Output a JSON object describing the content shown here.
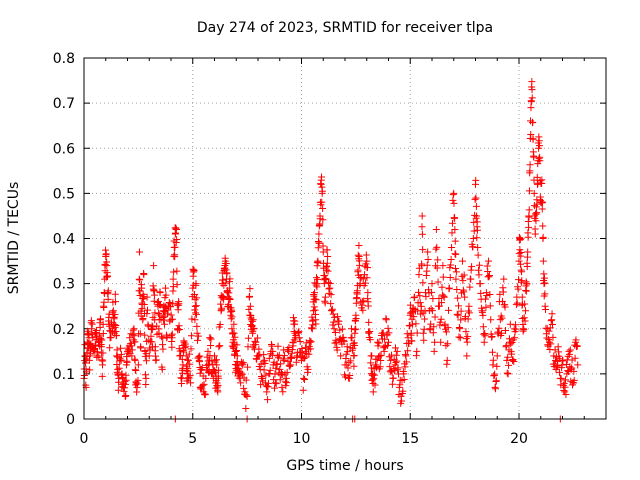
{
  "chart_data": {
    "type": "scatter",
    "title": "Day 274 of 2023, SRMTID for receiver tlpa",
    "xlabel": "GPS time / hours",
    "ylabel": "SRMTID / TECUs",
    "xlim": [
      0,
      24
    ],
    "ylim": [
      0,
      0.8
    ],
    "xticks": [
      0,
      5,
      10,
      15,
      20
    ],
    "yticks": [
      0,
      0.1,
      0.2,
      0.3,
      0.4,
      0.5,
      0.6,
      0.7,
      0.8
    ],
    "grid": true,
    "marker": "+",
    "series": [
      {
        "name": "SRMTID",
        "color": "#ff0000",
        "points": [
          [
            0.0,
            0.09
          ],
          [
            0.05,
            0.14
          ],
          [
            0.1,
            0.07
          ],
          [
            0.15,
            0.17
          ],
          [
            0.2,
            0.19
          ],
          [
            0.25,
            0.13
          ],
          [
            0.3,
            0.16
          ],
          [
            0.35,
            0.2
          ],
          [
            0.4,
            0.18
          ],
          [
            0.5,
            0.15
          ],
          [
            0.55,
            0.19
          ],
          [
            0.6,
            0.14
          ],
          [
            0.7,
            0.17
          ],
          [
            0.75,
            0.22
          ],
          [
            0.8,
            0.16
          ],
          [
            0.85,
            0.12
          ],
          [
            0.9,
            0.25
          ],
          [
            0.95,
            0.31
          ],
          [
            1.0,
            0.36
          ],
          [
            1.05,
            0.34
          ],
          [
            1.1,
            0.28
          ],
          [
            1.15,
            0.21
          ],
          [
            1.2,
            0.18
          ],
          [
            1.3,
            0.2
          ],
          [
            1.35,
            0.24
          ],
          [
            1.4,
            0.19
          ],
          [
            1.45,
            0.26
          ],
          [
            1.5,
            0.14
          ],
          [
            1.55,
            0.11
          ],
          [
            1.6,
            0.09
          ],
          [
            1.7,
            0.13
          ],
          [
            1.75,
            0.1
          ],
          [
            1.8,
            0.07
          ],
          [
            1.9,
            0.05
          ],
          [
            1.95,
            0.12
          ],
          [
            2.0,
            0.15
          ],
          [
            2.1,
            0.18
          ],
          [
            2.2,
            0.14
          ],
          [
            2.3,
            0.2
          ],
          [
            2.35,
            0.13
          ],
          [
            2.4,
            0.08
          ],
          [
            2.5,
            0.12
          ],
          [
            2.55,
            0.37
          ],
          [
            2.6,
            0.16
          ],
          [
            2.65,
            0.29
          ],
          [
            2.7,
            0.22
          ],
          [
            2.75,
            0.32
          ],
          [
            2.8,
            0.15
          ],
          [
            2.85,
            0.09
          ],
          [
            2.9,
            0.27
          ],
          [
            3.0,
            0.14
          ],
          [
            3.1,
            0.2
          ],
          [
            3.15,
            0.16
          ],
          [
            3.2,
            0.34
          ],
          [
            3.25,
            0.22
          ],
          [
            3.3,
            0.13
          ],
          [
            3.4,
            0.25
          ],
          [
            3.45,
            0.19
          ],
          [
            3.5,
            0.28
          ],
          [
            3.6,
            0.11
          ],
          [
            3.65,
            0.24
          ],
          [
            3.7,
            0.21
          ],
          [
            3.75,
            0.29
          ],
          [
            3.8,
            0.18
          ],
          [
            3.9,
            0.25
          ],
          [
            4.0,
            0.22
          ],
          [
            4.05,
            0.18
          ],
          [
            4.1,
            0.31
          ],
          [
            4.15,
            0.38
          ],
          [
            4.2,
            0.41
          ],
          [
            4.25,
            0.42
          ],
          [
            4.3,
            0.2
          ],
          [
            4.35,
            0.26
          ],
          [
            4.4,
            0.14
          ],
          [
            4.5,
            0.09
          ],
          [
            4.55,
            0.12
          ],
          [
            4.6,
            0.17
          ],
          [
            4.7,
            0.14
          ],
          [
            4.75,
            0.1
          ],
          [
            4.8,
            0.13
          ],
          [
            4.9,
            0.08
          ],
          [
            5.0,
            0.29
          ],
          [
            5.05,
            0.33
          ],
          [
            5.1,
            0.22
          ],
          [
            5.15,
            0.3
          ],
          [
            5.2,
            0.19
          ],
          [
            5.3,
            0.13
          ],
          [
            5.35,
            0.07
          ],
          [
            5.4,
            0.11
          ],
          [
            5.5,
            0.06
          ],
          [
            5.6,
            0.09
          ],
          [
            5.7,
            0.15
          ],
          [
            5.75,
            0.12
          ],
          [
            5.8,
            0.18
          ],
          [
            5.9,
            0.1
          ],
          [
            6.0,
            0.14
          ],
          [
            6.05,
            0.08
          ],
          [
            6.1,
            0.12
          ],
          [
            6.15,
            0.06
          ],
          [
            6.2,
            0.16
          ],
          [
            6.3,
            0.24
          ],
          [
            6.35,
            0.3
          ],
          [
            6.4,
            0.27
          ],
          [
            6.45,
            0.33
          ],
          [
            6.5,
            0.35
          ],
          [
            6.55,
            0.31
          ],
          [
            6.6,
            0.28
          ],
          [
            6.65,
            0.25
          ],
          [
            6.7,
            0.29
          ],
          [
            6.75,
            0.23
          ],
          [
            6.8,
            0.2
          ],
          [
            6.85,
            0.17
          ],
          [
            6.9,
            0.19
          ],
          [
            6.95,
            0.15
          ],
          [
            7.0,
            0.12
          ],
          [
            7.05,
            0.14
          ],
          [
            7.1,
            0.1
          ],
          [
            7.2,
            0.08
          ],
          [
            7.3,
            0.12
          ],
          [
            7.4,
            0.06
          ],
          [
            7.5,
            0.05
          ],
          [
            7.6,
            0.27
          ],
          [
            7.65,
            0.25
          ],
          [
            7.7,
            0.22
          ],
          [
            7.75,
            0.19
          ],
          [
            7.8,
            0.2
          ],
          [
            7.9,
            0.17
          ],
          [
            8.0,
            0.14
          ],
          [
            8.1,
            0.11
          ],
          [
            8.2,
            0.09
          ],
          [
            8.3,
            0.13
          ],
          [
            8.4,
            0.06
          ],
          [
            8.5,
            0.1
          ],
          [
            8.6,
            0.15
          ],
          [
            8.7,
            0.12
          ],
          [
            8.8,
            0.08
          ],
          [
            8.9,
            0.14
          ],
          [
            9.0,
            0.11
          ],
          [
            9.1,
            0.07
          ],
          [
            9.2,
            0.13
          ],
          [
            9.3,
            0.09
          ],
          [
            9.4,
            0.15
          ],
          [
            9.5,
            0.12
          ],
          [
            9.6,
            0.17
          ],
          [
            9.65,
            0.21
          ],
          [
            9.7,
            0.19
          ],
          [
            9.8,
            0.14
          ],
          [
            9.9,
            0.18
          ],
          [
            10.0,
            0.13
          ],
          [
            10.1,
            0.09
          ],
          [
            10.2,
            0.15
          ],
          [
            10.3,
            0.11
          ],
          [
            10.4,
            0.17
          ],
          [
            10.5,
            0.2
          ],
          [
            10.55,
            0.24
          ],
          [
            10.6,
            0.28
          ],
          [
            10.65,
            0.22
          ],
          [
            10.7,
            0.3
          ],
          [
            10.75,
            0.35
          ],
          [
            10.8,
            0.41
          ],
          [
            10.85,
            0.45
          ],
          [
            10.9,
            0.52
          ],
          [
            10.95,
            0.5
          ],
          [
            11.0,
            0.37
          ],
          [
            11.05,
            0.3
          ],
          [
            11.1,
            0.27
          ],
          [
            11.15,
            0.33
          ],
          [
            11.2,
            0.36
          ],
          [
            11.3,
            0.29
          ],
          [
            11.4,
            0.24
          ],
          [
            11.5,
            0.2
          ],
          [
            11.6,
            0.17
          ],
          [
            11.7,
            0.21
          ],
          [
            11.8,
            0.14
          ],
          [
            11.9,
            0.18
          ],
          [
            12.0,
            0.12
          ],
          [
            12.1,
            0.16
          ],
          [
            12.2,
            0.09
          ],
          [
            12.3,
            0.2
          ],
          [
            12.4,
            0.14
          ],
          [
            12.45,
            0.19
          ],
          [
            12.5,
            0.23
          ],
          [
            12.55,
            0.28
          ],
          [
            12.6,
            0.33
          ],
          [
            12.65,
            0.36
          ],
          [
            12.7,
            0.3
          ],
          [
            12.8,
            0.26
          ],
          [
            12.9,
            0.32
          ],
          [
            13.0,
            0.35
          ],
          [
            13.05,
            0.28
          ],
          [
            13.1,
            0.19
          ],
          [
            13.2,
            0.14
          ],
          [
            13.25,
            0.1
          ],
          [
            13.3,
            0.06
          ],
          [
            13.4,
            0.12
          ],
          [
            13.5,
            0.17
          ],
          [
            13.6,
            0.14
          ],
          [
            13.7,
            0.19
          ],
          [
            13.8,
            0.15
          ],
          [
            13.9,
            0.22
          ],
          [
            14.0,
            0.17
          ],
          [
            14.1,
            0.13
          ],
          [
            14.2,
            0.09
          ],
          [
            14.3,
            0.12
          ],
          [
            14.4,
            0.15
          ],
          [
            14.5,
            0.07
          ],
          [
            14.6,
            0.04
          ],
          [
            14.7,
            0.1
          ],
          [
            14.8,
            0.14
          ],
          [
            14.9,
            0.18
          ],
          [
            15.0,
            0.23
          ],
          [
            15.05,
            0.19
          ],
          [
            15.1,
            0.21
          ],
          [
            15.2,
            0.27
          ],
          [
            15.3,
            0.15
          ],
          [
            15.4,
            0.32
          ],
          [
            15.5,
            0.24
          ],
          [
            15.55,
            0.45
          ],
          [
            15.6,
            0.19
          ],
          [
            15.7,
            0.28
          ],
          [
            15.8,
            0.37
          ],
          [
            15.9,
            0.2
          ],
          [
            16.0,
            0.3
          ],
          [
            16.1,
            0.15
          ],
          [
            16.2,
            0.42
          ],
          [
            16.3,
            0.25
          ],
          [
            16.4,
            0.17
          ],
          [
            16.5,
            0.34
          ],
          [
            16.6,
            0.21
          ],
          [
            16.7,
            0.13
          ],
          [
            16.8,
            0.29
          ],
          [
            16.9,
            0.38
          ],
          [
            17.0,
            0.5
          ],
          [
            17.05,
            0.42
          ],
          [
            17.1,
            0.31
          ],
          [
            17.2,
            0.23
          ],
          [
            17.3,
            0.18
          ],
          [
            17.4,
            0.35
          ],
          [
            17.5,
            0.27
          ],
          [
            17.6,
            0.14
          ],
          [
            17.7,
            0.25
          ],
          [
            17.8,
            0.33
          ],
          [
            17.9,
            0.4
          ],
          [
            18.0,
            0.52
          ],
          [
            18.05,
            0.45
          ],
          [
            18.1,
            0.38
          ],
          [
            18.2,
            0.3
          ],
          [
            18.3,
            0.24
          ],
          [
            18.4,
            0.17
          ],
          [
            18.5,
            0.28
          ],
          [
            18.6,
            0.35
          ],
          [
            18.7,
            0.22
          ],
          [
            18.8,
            0.12
          ],
          [
            18.9,
            0.07
          ],
          [
            19.0,
            0.14
          ],
          [
            19.1,
            0.26
          ],
          [
            19.2,
            0.19
          ],
          [
            19.3,
            0.31
          ],
          [
            19.4,
            0.16
          ],
          [
            19.5,
            0.1
          ],
          [
            19.6,
            0.21
          ],
          [
            19.7,
            0.13
          ],
          [
            19.8,
            0.18
          ],
          [
            19.9,
            0.27
          ],
          [
            20.0,
            0.35
          ],
          [
            20.05,
            0.4
          ],
          [
            20.1,
            0.33
          ],
          [
            20.15,
            0.27
          ],
          [
            20.2,
            0.2
          ],
          [
            20.3,
            0.24
          ],
          [
            20.35,
            0.3
          ],
          [
            20.4,
            0.37
          ],
          [
            20.45,
            0.45
          ],
          [
            20.5,
            0.55
          ],
          [
            20.55,
            0.69
          ],
          [
            20.6,
            0.73
          ],
          [
            20.65,
            0.62
          ],
          [
            20.7,
            0.5
          ],
          [
            20.75,
            0.41
          ],
          [
            20.8,
            0.47
          ],
          [
            20.85,
            0.52
          ],
          [
            20.9,
            0.6
          ],
          [
            20.95,
            0.58
          ],
          [
            21.0,
            0.48
          ],
          [
            21.05,
            0.53
          ],
          [
            21.1,
            0.4
          ],
          [
            21.15,
            0.3
          ],
          [
            21.2,
            0.25
          ],
          [
            21.3,
            0.2
          ],
          [
            21.4,
            0.17
          ],
          [
            21.5,
            0.22
          ],
          [
            21.6,
            0.14
          ],
          [
            21.7,
            0.11
          ],
          [
            21.8,
            0.16
          ],
          [
            21.9,
            0.09
          ],
          [
            22.0,
            0.13
          ],
          [
            22.1,
            0.06
          ],
          [
            22.2,
            0.1
          ],
          [
            22.3,
            0.15
          ],
          [
            22.4,
            0.11
          ],
          [
            22.5,
            0.08
          ],
          [
            22.6,
            0.17
          ],
          [
            22.7,
            0.12
          ]
        ]
      }
    ],
    "zero_markers_x": [
      4.2,
      7.5,
      12.35,
      12.45,
      21.9
    ]
  }
}
